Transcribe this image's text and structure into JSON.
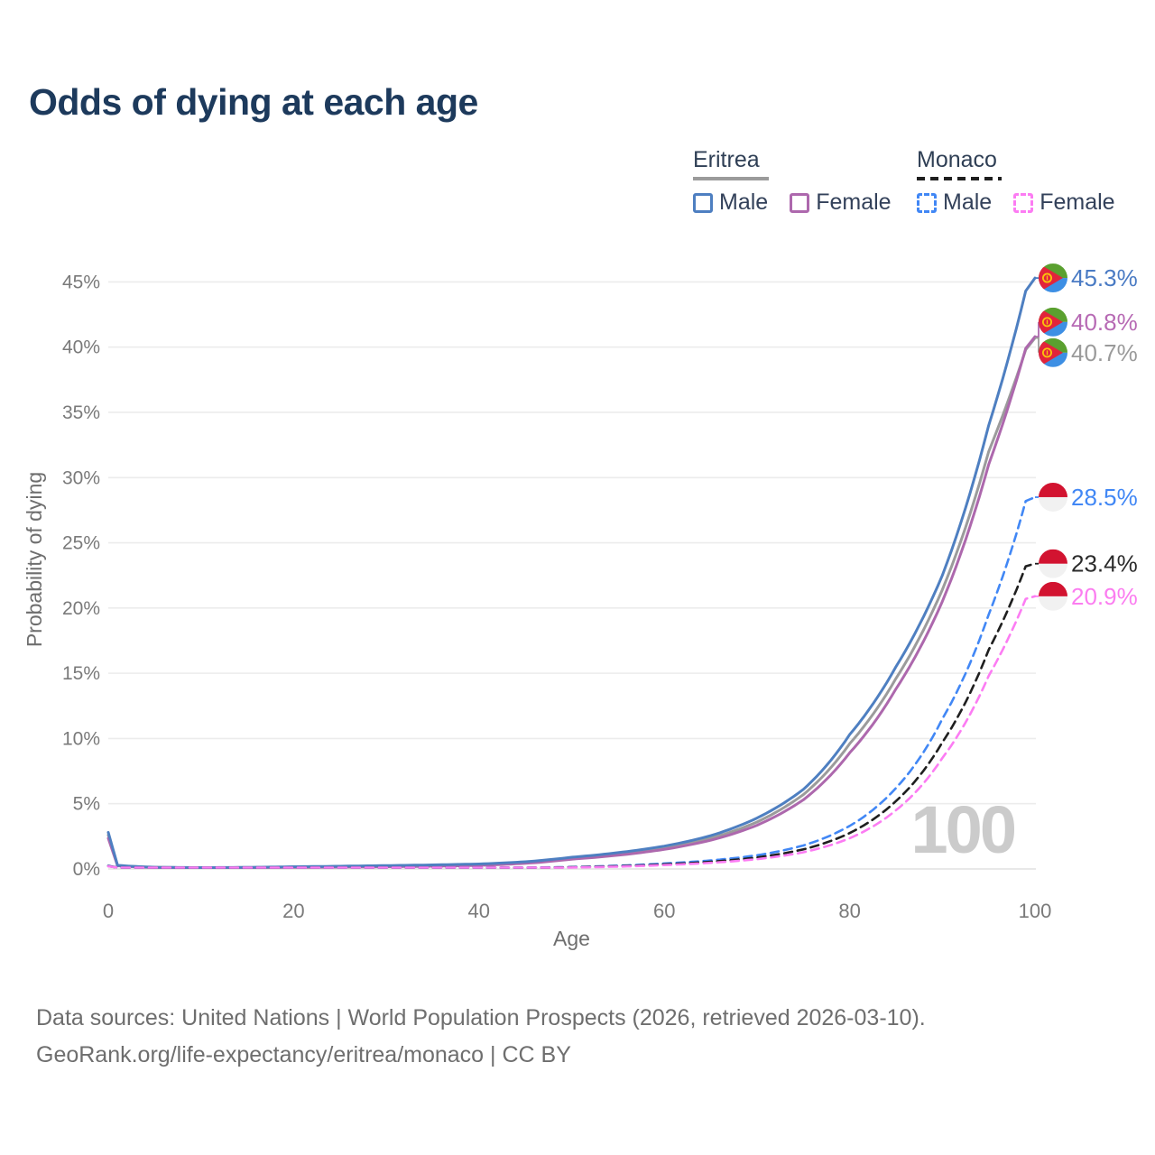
{
  "title": "Odds of dying at each age",
  "legend": {
    "groups": [
      {
        "label": "Eritrea",
        "line_style": "solid",
        "line_color": "#9b9b9b",
        "items": [
          {
            "label": "Male",
            "color": "#4e7fc1",
            "dash": false
          },
          {
            "label": "Female",
            "color": "#ad68ad",
            "dash": false
          }
        ]
      },
      {
        "label": "Monaco",
        "line_style": "dashed",
        "line_color": "#1f1f1f",
        "items": [
          {
            "label": "Male",
            "color": "#4187f5",
            "dash": true
          },
          {
            "label": "Female",
            "color": "#fc7cf3",
            "dash": true
          }
        ]
      }
    ]
  },
  "chart_data": {
    "type": "line",
    "title": "Odds of dying at each age",
    "xlabel": "Age",
    "ylabel": "Probability of dying",
    "xlim": [
      0,
      100
    ],
    "ylim_percent": [
      0,
      45
    ],
    "x_ticks": [
      0,
      20,
      40,
      60,
      80,
      100
    ],
    "y_ticks_percent": [
      0,
      5,
      10,
      15,
      20,
      25,
      30,
      35,
      40,
      45
    ],
    "y_tick_suffix": "%",
    "grid": "horizontal",
    "legend_position": "top-right",
    "watermark": "100",
    "ages": [
      0,
      1,
      5,
      10,
      15,
      20,
      25,
      30,
      35,
      40,
      45,
      50,
      55,
      60,
      65,
      70,
      75,
      80,
      85,
      90,
      95,
      99,
      100
    ],
    "series": [
      {
        "name": "Eritrea Both sexes",
        "country": "Eritrea",
        "sex": "both",
        "style": "solid",
        "color": "#9b9b9b",
        "label_color": "#9a9a9a",
        "flag": "eritrea",
        "end_label": "40.7%",
        "end_value": 40.7,
        "values_percent": [
          2.6,
          0.26,
          0.12,
          0.095,
          0.11,
          0.15,
          0.18,
          0.21,
          0.26,
          0.32,
          0.49,
          0.82,
          1.15,
          1.6,
          2.35,
          3.6,
          5.7,
          9.6,
          14.6,
          21.4,
          32.0,
          39.8,
          40.7
        ]
      },
      {
        "name": "Eritrea Female",
        "country": "Eritrea",
        "sex": "female",
        "style": "solid",
        "color": "#ad68ad",
        "label_color": "#b76ab4",
        "flag": "eritrea",
        "end_label": "40.8%",
        "end_value": 40.8,
        "values_percent": [
          2.35,
          0.24,
          0.11,
          0.09,
          0.1,
          0.12,
          0.14,
          0.17,
          0.21,
          0.27,
          0.43,
          0.75,
          1.05,
          1.5,
          2.2,
          3.35,
          5.3,
          8.9,
          13.8,
          20.5,
          31.0,
          39.9,
          40.8
        ]
      },
      {
        "name": "Eritrea Male",
        "country": "Eritrea",
        "sex": "male",
        "style": "solid",
        "color": "#4e7fc1",
        "label_color": "#4a7bc4",
        "flag": "eritrea",
        "end_label": "45.3%",
        "end_value": 45.3,
        "values_percent": [
          2.8,
          0.28,
          0.13,
          0.1,
          0.12,
          0.17,
          0.21,
          0.26,
          0.31,
          0.38,
          0.55,
          0.9,
          1.25,
          1.75,
          2.55,
          3.9,
          6.1,
          10.3,
          15.5,
          22.5,
          34.0,
          44.3,
          45.3
        ]
      },
      {
        "name": "Monaco Male",
        "country": "Monaco",
        "sex": "male",
        "style": "dashed",
        "color": "#4187f5",
        "label_color": "#4187f5",
        "flag": "monaco",
        "end_label": "28.5%",
        "end_value": 28.5,
        "values_percent": [
          0.25,
          0.02,
          0.01,
          0.01,
          0.015,
          0.03,
          0.035,
          0.04,
          0.05,
          0.07,
          0.1,
          0.15,
          0.25,
          0.42,
          0.65,
          1.05,
          1.8,
          3.3,
          6.2,
          11.5,
          19.5,
          28.2,
          28.5
        ]
      },
      {
        "name": "Monaco Both sexes",
        "country": "Monaco",
        "sex": "both",
        "style": "dashed",
        "color": "#1f1f1f",
        "label_color": "#2b2b2b",
        "flag": "monaco",
        "end_label": "23.4%",
        "end_value": 23.4,
        "values_percent": [
          0.22,
          0.018,
          0.009,
          0.009,
          0.013,
          0.025,
          0.03,
          0.035,
          0.045,
          0.06,
          0.085,
          0.13,
          0.21,
          0.35,
          0.55,
          0.88,
          1.5,
          2.75,
          5.2,
          9.7,
          16.8,
          23.2,
          23.4
        ]
      },
      {
        "name": "Monaco Female",
        "country": "Monaco",
        "sex": "female",
        "style": "dashed",
        "color": "#fc7cf3",
        "label_color": "#fb7df0",
        "flag": "monaco",
        "end_label": "20.9%",
        "end_value": 20.9,
        "values_percent": [
          0.2,
          0.015,
          0.008,
          0.008,
          0.012,
          0.02,
          0.025,
          0.03,
          0.04,
          0.05,
          0.07,
          0.11,
          0.18,
          0.3,
          0.47,
          0.75,
          1.28,
          2.35,
          4.5,
          8.5,
          14.8,
          20.7,
          20.9
        ]
      }
    ]
  },
  "footer": {
    "line1": "Data sources: United Nations | World Population Prospects (2026, retrieved 2026-03-10).",
    "line2": "GeoRank.org/life-expectancy/eritrea/monaco | CC BY"
  }
}
